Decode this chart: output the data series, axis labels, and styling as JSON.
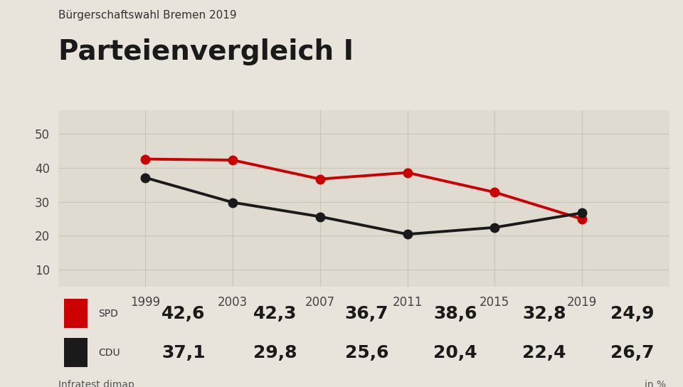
{
  "subtitle": "Bürgerschaftswahl Bremen 2019",
  "title": "Parteienvergleich I",
  "years": [
    1999,
    2003,
    2007,
    2011,
    2015,
    2019
  ],
  "spd_values": [
    42.6,
    42.3,
    36.7,
    38.6,
    32.8,
    24.9
  ],
  "cdu_values": [
    37.1,
    29.8,
    25.6,
    20.4,
    22.4,
    26.7
  ],
  "spd_color": "#cc0000",
  "cdu_color": "#1a1a1a",
  "bg_color": "#e8e4dc",
  "plot_bg_color": "#e0dbd0",
  "grid_color": "#c8c4b8",
  "yticks": [
    10,
    20,
    30,
    40,
    50
  ],
  "ylim": [
    5,
    57
  ],
  "source": "Infratest dimap",
  "unit": "in %",
  "spd_label": "SPD",
  "cdu_label": "CDU",
  "legend_bg": "#c8c3b5",
  "line_width": 2.8,
  "marker_size": 9,
  "subtitle_fontsize": 11,
  "title_fontsize": 28,
  "tick_fontsize": 12,
  "legend_label_fontsize": 10,
  "legend_val_fontsize": 18,
  "source_fontsize": 10
}
